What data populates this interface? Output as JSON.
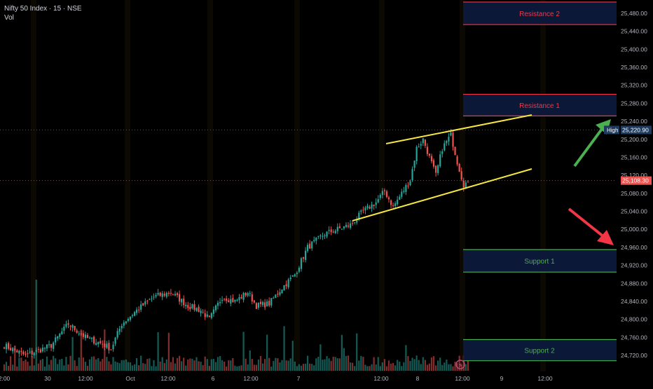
{
  "header": {
    "symbol_line": "Nifty 50 Index · 15 · NSE",
    "vol_label": "Vol"
  },
  "colors": {
    "background": "#000000",
    "up_candle": "#26a69a",
    "down_candle": "#ef5350",
    "channel_line": "#f5e642",
    "resistance_border": "#f23645",
    "resistance_text": "#f23645",
    "support_border": "#4caf50",
    "support_text": "#4caf50",
    "zone_fill": "#0d1b3e",
    "green_arrow": "#4caf50",
    "red_arrow": "#f23645",
    "axis_text": "#b2b5be",
    "price_tag": "#ef5350",
    "high_tag": "#1e3a5f"
  },
  "price_axis": {
    "ticks": [
      "25,480.00",
      "25,440.00",
      "25,400.00",
      "25,360.00",
      "25,320.00",
      "25,280.00",
      "25,240.00",
      "25,200.00",
      "25,160.00",
      "25,120.00",
      "25,080.00",
      "25,040.00",
      "25,000.00",
      "24,960.00",
      "24,920.00",
      "24,880.00",
      "24,840.00",
      "24,800.00",
      "24,760.00",
      "24,720.00"
    ],
    "high_label": "High",
    "high_value": "25,220.90",
    "last_value": "25,108.30"
  },
  "time_axis": {
    "ticks": [
      "2:00",
      "30",
      "12:00",
      "Oct",
      "12:00",
      "6",
      "12:00",
      "7",
      "12:00",
      "8",
      "12:00",
      "9",
      "12:00"
    ]
  },
  "zones": [
    {
      "label": "Resistance 2",
      "kind": "resistance",
      "top": 25505,
      "bottom": 25455
    },
    {
      "label": "Resistance 1",
      "kind": "resistance",
      "top": 25300,
      "bottom": 25252
    },
    {
      "label": "Support 1",
      "kind": "support",
      "top": 24955,
      "bottom": 24905
    },
    {
      "label": "Support 2",
      "kind": "support",
      "top": 24755,
      "bottom": 24708
    }
  ],
  "chart_data": {
    "type": "candlestick",
    "title": "Nifty 50 Index · 15 · NSE",
    "ylim": [
      24700,
      25515
    ],
    "annotations": [
      "Resistance 2",
      "Resistance 1",
      "Support 1",
      "Support 2"
    ],
    "channel_upper": [
      [
        25199,
        25203
      ],
      [
        25252,
        25259
      ]
    ],
    "channel_lower": [
      [
        25007,
        25021
      ],
      [
        25252,
        25131
      ]
    ],
    "last_price": 25108.3,
    "high_price": 25220.9,
    "candle_count": 210,
    "price_path": [
      [
        0,
        24742
      ],
      [
        10,
        24720
      ],
      [
        22,
        24742
      ],
      [
        30,
        24790
      ],
      [
        38,
        24760
      ],
      [
        46,
        24745
      ],
      [
        50,
        24735
      ],
      [
        55,
        24790
      ],
      [
        62,
        24820
      ],
      [
        70,
        24850
      ],
      [
        78,
        24860
      ],
      [
        86,
        24830
      ],
      [
        92,
        24820
      ],
      [
        96,
        24800
      ],
      [
        102,
        24850
      ],
      [
        108,
        24840
      ],
      [
        114,
        24860
      ],
      [
        118,
        24830
      ],
      [
        124,
        24835
      ],
      [
        130,
        24870
      ],
      [
        136,
        24900
      ],
      [
        142,
        24960
      ],
      [
        150,
        24990
      ],
      [
        156,
        25000
      ],
      [
        162,
        25010
      ],
      [
        168,
        25040
      ],
      [
        174,
        25060
      ],
      [
        178,
        25085
      ],
      [
        182,
        25050
      ],
      [
        186,
        25080
      ],
      [
        190,
        25110
      ],
      [
        193,
        25180
      ],
      [
        196,
        25200
      ],
      [
        199,
        25160
      ],
      [
        202,
        25120
      ],
      [
        205,
        25180
      ],
      [
        209,
        25210
      ],
      [
        212,
        25150
      ],
      [
        215,
        25100
      ],
      [
        217,
        25105
      ]
    ],
    "volume_scale": "relative"
  }
}
